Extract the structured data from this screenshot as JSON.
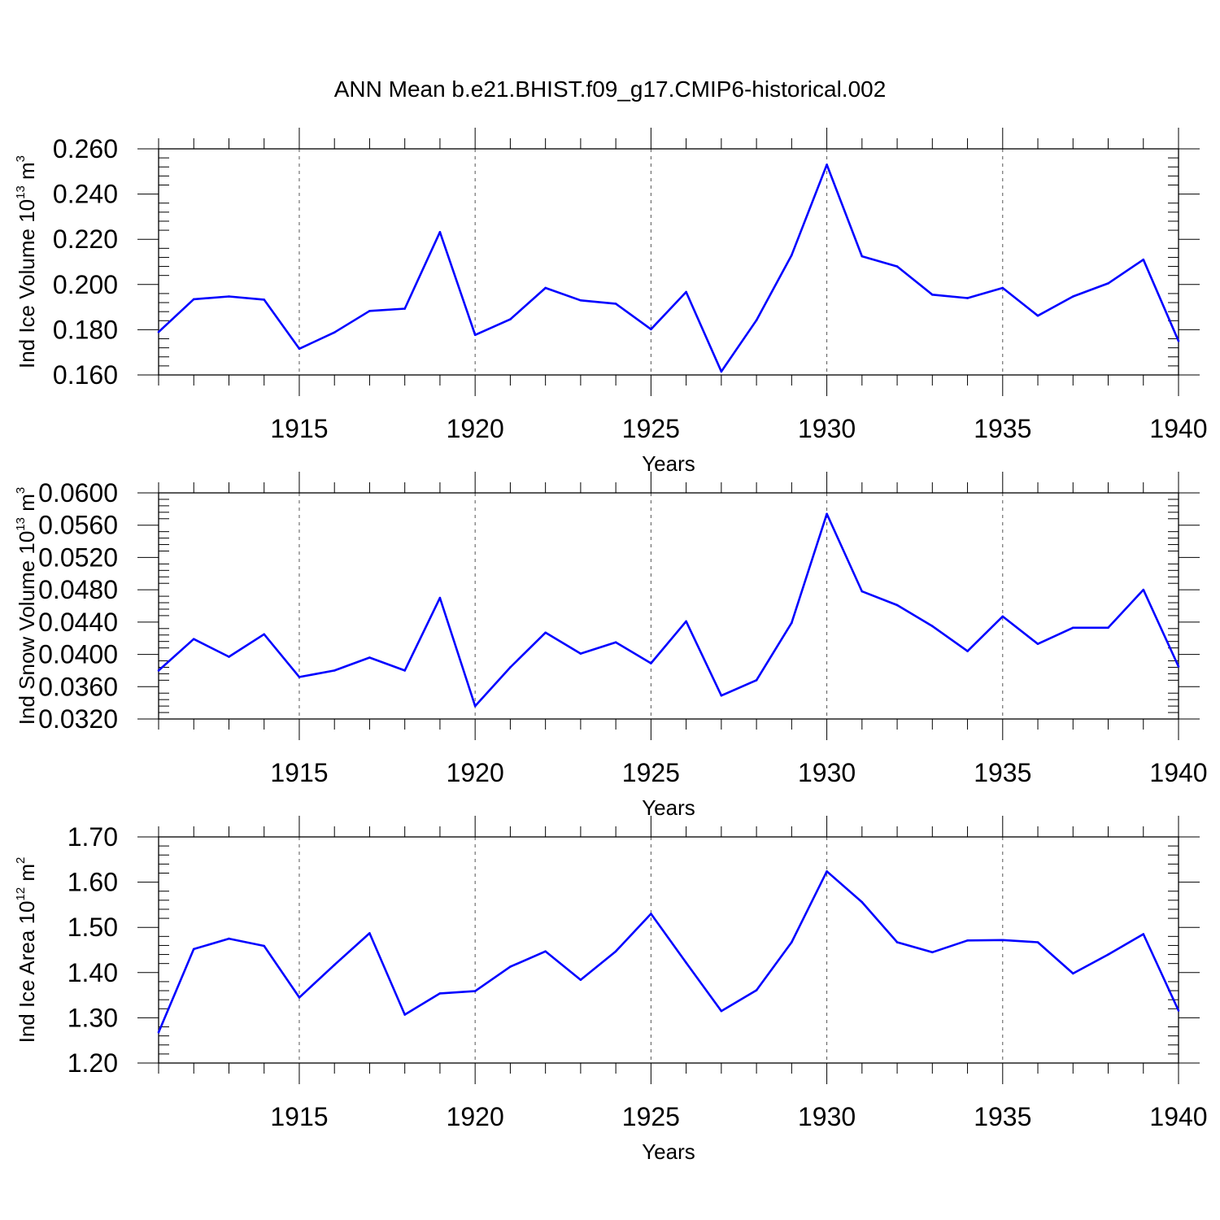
{
  "title": "ANN Mean b.e21.BHIST.f09_g17.CMIP6-historical.002",
  "colors": {
    "series": "#0000ff",
    "axis": "#000000",
    "grid": "#555555"
  },
  "chart_data": [
    {
      "type": "line",
      "id": "ice-volume",
      "ylabel_main": "Ind Ice Volume 10",
      "ylabel_exp": "13",
      "ylabel_unit": " m",
      "ylabel_unit_exp": "3",
      "xlabel": "Years",
      "xlim": [
        1911,
        1940
      ],
      "ylim": [
        0.16,
        0.26
      ],
      "y_ticks": [
        0.16,
        0.18,
        0.2,
        0.22,
        0.24,
        0.26
      ],
      "y_tick_labels": [
        "0.160",
        "0.180",
        "0.200",
        "0.220",
        "0.240",
        "0.260"
      ],
      "x_ticks": [
        1915,
        1920,
        1925,
        1930,
        1935,
        1940
      ],
      "x_tick_labels": [
        "1915",
        "1920",
        "1925",
        "1930",
        "1935",
        "1940"
      ],
      "grid": "vertical dashed at major x ticks",
      "x": [
        1911,
        1912,
        1913,
        1914,
        1915,
        1916,
        1917,
        1918,
        1919,
        1920,
        1921,
        1922,
        1923,
        1924,
        1925,
        1926,
        1927,
        1928,
        1929,
        1930,
        1931,
        1932,
        1933,
        1934,
        1935,
        1936,
        1937,
        1938,
        1939,
        1940
      ],
      "values": [
        0.179,
        0.1935,
        0.1947,
        0.1933,
        0.1716,
        0.1788,
        0.1883,
        0.1893,
        0.2232,
        0.1777,
        0.1846,
        0.1985,
        0.193,
        0.1915,
        0.1802,
        0.1967,
        0.1615,
        0.1842,
        0.213,
        0.253,
        0.2125,
        0.208,
        0.1955,
        0.194,
        0.1985,
        0.1862,
        0.1947,
        0.2005,
        0.211,
        0.175
      ]
    },
    {
      "type": "line",
      "id": "snow-volume",
      "ylabel_main": "Ind Snow Volume 10",
      "ylabel_exp": "13",
      "ylabel_unit": " m",
      "ylabel_unit_exp": "3",
      "xlabel": "Years",
      "xlim": [
        1911,
        1940
      ],
      "ylim": [
        0.032,
        0.06
      ],
      "y_ticks": [
        0.032,
        0.036,
        0.04,
        0.044,
        0.048,
        0.052,
        0.056,
        0.06
      ],
      "y_tick_labels": [
        "0.0320",
        "0.0360",
        "0.0400",
        "0.0440",
        "0.0480",
        "0.0520",
        "0.0560",
        "0.0600"
      ],
      "x_ticks": [
        1915,
        1920,
        1925,
        1930,
        1935,
        1940
      ],
      "x_tick_labels": [
        "1915",
        "1920",
        "1925",
        "1930",
        "1935",
        "1940"
      ],
      "grid": "vertical dashed at major x ticks",
      "x": [
        1911,
        1912,
        1913,
        1914,
        1915,
        1916,
        1917,
        1918,
        1919,
        1920,
        1921,
        1922,
        1923,
        1924,
        1925,
        1926,
        1927,
        1928,
        1929,
        1930,
        1931,
        1932,
        1933,
        1934,
        1935,
        1936,
        1937,
        1938,
        1939,
        1940
      ],
      "values": [
        0.038,
        0.0419,
        0.0397,
        0.0425,
        0.0372,
        0.038,
        0.0396,
        0.038,
        0.047,
        0.0336,
        0.0384,
        0.0427,
        0.0401,
        0.0415,
        0.0389,
        0.0441,
        0.0349,
        0.0368,
        0.0439,
        0.0574,
        0.0478,
        0.0461,
        0.0435,
        0.0404,
        0.0447,
        0.0413,
        0.0433,
        0.0433,
        0.048,
        0.0385
      ]
    },
    {
      "type": "line",
      "id": "ice-area",
      "ylabel_main": "Ind Ice Area 10",
      "ylabel_exp": "12",
      "ylabel_unit": " m",
      "ylabel_unit_exp": "2",
      "xlabel": "Years",
      "xlim": [
        1911,
        1940
      ],
      "ylim": [
        1.2,
        1.7
      ],
      "y_ticks": [
        1.2,
        1.3,
        1.4,
        1.5,
        1.6,
        1.7
      ],
      "y_tick_labels": [
        "1.20",
        "1.30",
        "1.40",
        "1.50",
        "1.60",
        "1.70"
      ],
      "x_ticks": [
        1915,
        1920,
        1925,
        1930,
        1935,
        1940
      ],
      "x_tick_labels": [
        "1915",
        "1920",
        "1925",
        "1930",
        "1935",
        "1940"
      ],
      "grid": "vertical dashed at major x ticks",
      "x": [
        1911,
        1912,
        1913,
        1914,
        1915,
        1916,
        1917,
        1918,
        1919,
        1920,
        1921,
        1922,
        1923,
        1924,
        1925,
        1926,
        1927,
        1928,
        1929,
        1930,
        1931,
        1932,
        1933,
        1934,
        1935,
        1936,
        1937,
        1938,
        1939,
        1940
      ],
      "values": [
        1.268,
        1.452,
        1.475,
        1.459,
        1.345,
        1.417,
        1.487,
        1.307,
        1.354,
        1.359,
        1.413,
        1.447,
        1.384,
        1.447,
        1.53,
        1.422,
        1.315,
        1.361,
        1.467,
        1.624,
        1.556,
        1.467,
        1.445,
        1.471,
        1.472,
        1.467,
        1.398,
        1.44,
        1.485,
        1.316
      ]
    }
  ]
}
